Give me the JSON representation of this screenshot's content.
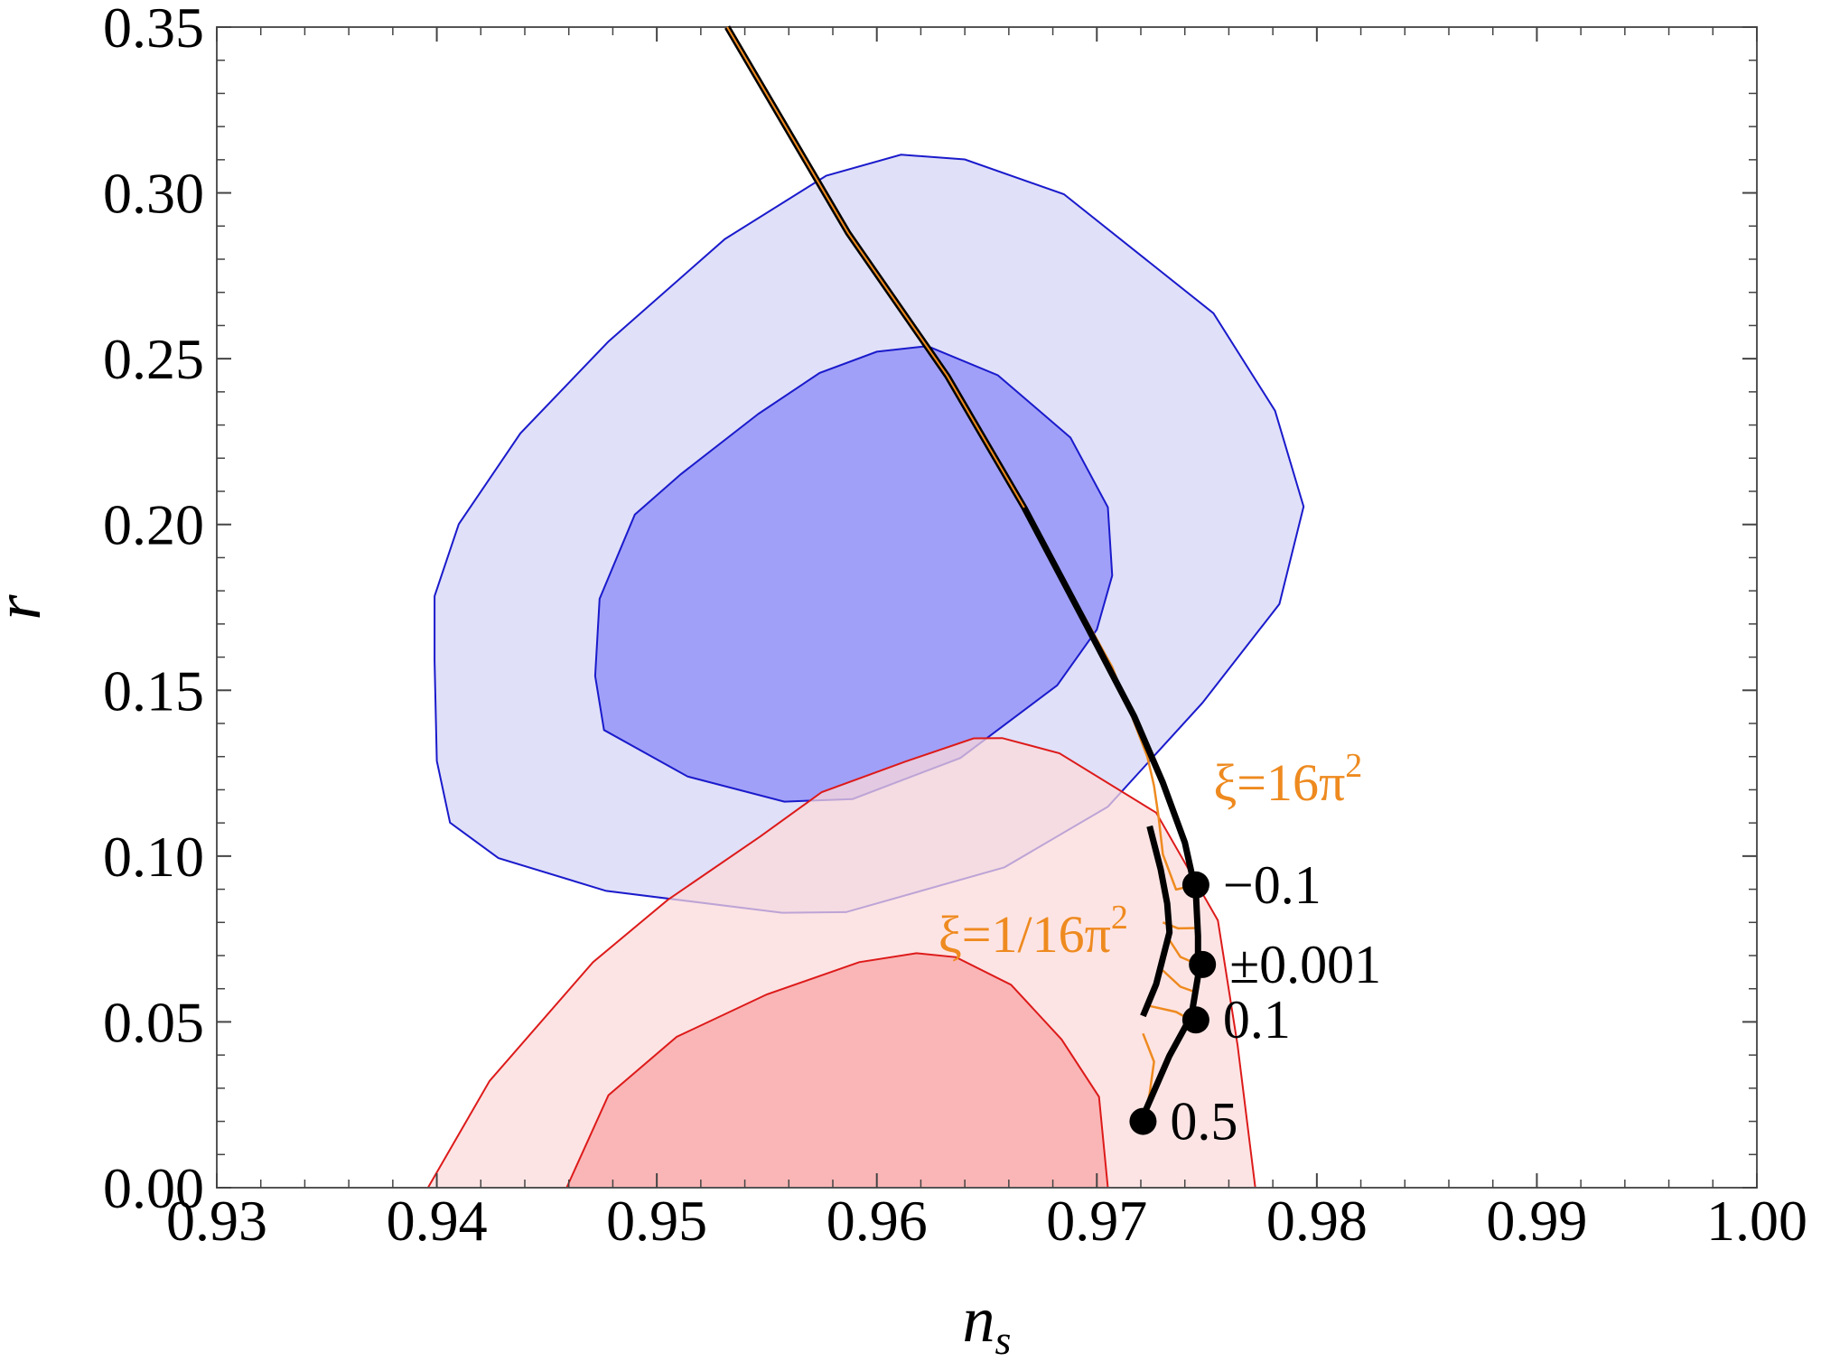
{
  "chart_data": {
    "type": "contour-scatter",
    "xlabel": "n",
    "xlabel_sub": "s",
    "ylabel": "r",
    "xlim": [
      0.93,
      1.0
    ],
    "ylim": [
      0.0,
      0.35
    ],
    "xticks": [
      "0.93",
      "0.94",
      "0.95",
      "0.96",
      "0.97",
      "0.98",
      "0.99",
      "1.00"
    ],
    "yticks": [
      "0.00",
      "0.05",
      "0.10",
      "0.15",
      "0.20",
      "0.25",
      "0.30",
      "0.35"
    ],
    "grid": false,
    "colors": {
      "blue_outer_fill": "#e0e0f8",
      "blue_inner_fill": "#a0a0f8",
      "blue_line": "#1a1acc",
      "red_outer_fill": "#fcdada",
      "red_inner_fill": "#f8a3a3",
      "red_line": "#dd1a1a",
      "curve_black": "#000000",
      "curve_orange": "#ee8a1f"
    },
    "contours": [
      {
        "id": "blue-outer",
        "points": [
          [
            0.9531,
            0.2861
          ],
          [
            0.9577,
            0.3052
          ],
          [
            0.9611,
            0.3115
          ],
          [
            0.964,
            0.3101
          ],
          [
            0.9685,
            0.2996
          ],
          [
            0.9753,
            0.2637
          ],
          [
            0.9781,
            0.2343
          ],
          [
            0.9794,
            0.2054
          ],
          [
            0.9783,
            0.176
          ],
          [
            0.9748,
            0.1462
          ],
          [
            0.9705,
            0.1149
          ],
          [
            0.9658,
            0.0966
          ],
          [
            0.9586,
            0.0831
          ],
          [
            0.9557,
            0.0829
          ],
          [
            0.9477,
            0.0895
          ],
          [
            0.9428,
            0.0994
          ],
          [
            0.9406,
            0.1101
          ],
          [
            0.94,
            0.1287
          ],
          [
            0.9399,
            0.1589
          ],
          [
            0.9399,
            0.1784
          ],
          [
            0.941,
            0.2001
          ],
          [
            0.9438,
            0.2275
          ],
          [
            0.9478,
            0.2552
          ],
          [
            0.9531,
            0.2861
          ]
        ]
      },
      {
        "id": "blue-inner",
        "points": [
          [
            0.9546,
            0.2333
          ],
          [
            0.9574,
            0.2457
          ],
          [
            0.96,
            0.2521
          ],
          [
            0.9623,
            0.2538
          ],
          [
            0.9655,
            0.245
          ],
          [
            0.9688,
            0.2262
          ],
          [
            0.9705,
            0.2052
          ],
          [
            0.9707,
            0.1846
          ],
          [
            0.97,
            0.1683
          ],
          [
            0.9682,
            0.1515
          ],
          [
            0.9638,
            0.1296
          ],
          [
            0.9589,
            0.1172
          ],
          [
            0.9558,
            0.1164
          ],
          [
            0.9514,
            0.124
          ],
          [
            0.9476,
            0.138
          ],
          [
            0.9472,
            0.1543
          ],
          [
            0.9474,
            0.1776
          ],
          [
            0.949,
            0.203
          ],
          [
            0.9511,
            0.2152
          ],
          [
            0.9546,
            0.2333
          ]
        ]
      },
      {
        "id": "red-outer",
        "points": [
          [
            0.9396,
            0.0
          ],
          [
            0.9424,
            0.0322
          ],
          [
            0.9471,
            0.068
          ],
          [
            0.9505,
            0.0868
          ],
          [
            0.9547,
            0.1059
          ],
          [
            0.9575,
            0.1193
          ],
          [
            0.9613,
            0.1285
          ],
          [
            0.9644,
            0.1355
          ],
          [
            0.9657,
            0.1356
          ],
          [
            0.9683,
            0.131
          ],
          [
            0.9727,
            0.1131
          ],
          [
            0.9755,
            0.0806
          ],
          [
            0.9764,
            0.0428
          ],
          [
            0.9772,
            0.0
          ]
        ]
      },
      {
        "id": "red-inner",
        "points": [
          [
            0.9459,
            0.0
          ],
          [
            0.9478,
            0.0279
          ],
          [
            0.9509,
            0.0455
          ],
          [
            0.955,
            0.0583
          ],
          [
            0.9592,
            0.068
          ],
          [
            0.9618,
            0.0707
          ],
          [
            0.9636,
            0.0695
          ],
          [
            0.9661,
            0.0612
          ],
          [
            0.9684,
            0.0447
          ],
          [
            0.9701,
            0.0274
          ],
          [
            0.9705,
            0.0
          ]
        ]
      }
    ],
    "series": [
      {
        "id": "main-black-curve",
        "style": "thick-black",
        "x": [
          0.9532,
          0.9587,
          0.9632,
          0.9667,
          0.9696,
          0.9717,
          0.973,
          0.974,
          0.9745,
          0.9746,
          0.9746,
          0.9743,
          0.9733,
          0.972
        ],
        "y": [
          0.35,
          0.2879,
          0.2448,
          0.2051,
          0.1688,
          0.1421,
          0.1221,
          0.1041,
          0.0891,
          0.0759,
          0.0638,
          0.0519,
          0.0398,
          0.02
        ]
      },
      {
        "id": "xi-1-16pi2-curve",
        "style": "thick-black",
        "x": [
          0.9724,
          0.9729,
          0.9732,
          0.9733,
          0.973,
          0.9727,
          0.9721
        ],
        "y": [
          0.109,
          0.0961,
          0.0857,
          0.077,
          0.0693,
          0.0614,
          0.0518
        ]
      },
      {
        "id": "xi-16pi2-curve",
        "style": "thin-orange",
        "x": [
          0.9532,
          0.9587,
          0.9632,
          0.9667,
          0.969,
          0.9707,
          0.9716,
          0.9723,
          0.9726,
          0.9728,
          0.973,
          0.9736,
          0.9745
        ],
        "y": [
          0.35,
          0.2879,
          0.2448,
          0.2051,
          0.1774,
          0.157,
          0.142,
          0.1299,
          0.1212,
          0.1121,
          0.1005,
          0.0899,
          0.0913
        ]
      },
      {
        "id": "orange-fan-1",
        "style": "thin-orange",
        "x": [
          0.973,
          0.9737,
          0.9746
        ],
        "y": [
          0.08,
          0.0782,
          0.0783
        ]
      },
      {
        "id": "orange-fan-2",
        "style": "thin-orange",
        "x": [
          0.9732,
          0.9738,
          0.9746
        ],
        "y": [
          0.0757,
          0.0696,
          0.0673
        ]
      },
      {
        "id": "orange-fan-3",
        "style": "thin-orange",
        "x": [
          0.973,
          0.9738,
          0.9746
        ],
        "y": [
          0.0655,
          0.0606,
          0.0587
        ]
      },
      {
        "id": "orange-fan-4",
        "style": "thin-orange",
        "x": [
          0.9724,
          0.9736,
          0.9745
        ],
        "y": [
          0.0548,
          0.053,
          0.0497
        ]
      },
      {
        "id": "orange-fan-5",
        "style": "thin-orange",
        "x": [
          0.9721,
          0.9726,
          0.9724,
          0.9721
        ],
        "y": [
          0.0465,
          0.038,
          0.0283,
          0.02
        ]
      }
    ],
    "points": [
      {
        "x": 0.9745,
        "y": 0.0913,
        "label": "−0.1"
      },
      {
        "x": 0.9748,
        "y": 0.0673,
        "label": "±0.001"
      },
      {
        "x": 0.9745,
        "y": 0.0506,
        "label": "0.1"
      },
      {
        "x": 0.9721,
        "y": 0.02,
        "label": "0.5"
      }
    ],
    "annotations": [
      {
        "text": "ξ=16π",
        "sup": "2",
        "x": 0.9753,
        "y": 0.1168
      },
      {
        "text": "ξ=1/16π",
        "sup": "2",
        "x": 0.9628,
        "y": 0.0711
      }
    ]
  }
}
